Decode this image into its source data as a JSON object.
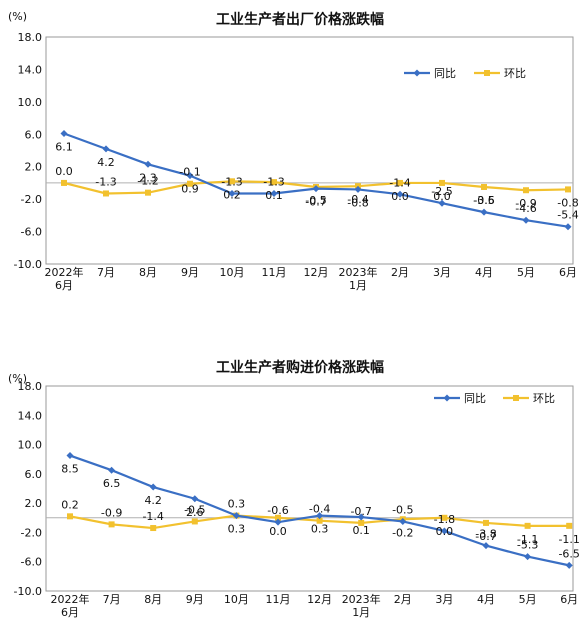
{
  "chart_data": [
    {
      "type": "line",
      "title": "工业生产者出厂价格涨跌幅",
      "unit_label": "(%)",
      "x": [
        "2022年|6月",
        "7月",
        "8月",
        "9月",
        "10月",
        "11月",
        "12月",
        "2023年|1月",
        "2月",
        "3月",
        "4月",
        "5月",
        "6月"
      ],
      "yticks": [
        "18.0",
        "14.0",
        "10.0",
        "6.0",
        "2.0",
        "-2.0",
        "-6.0",
        "-10.0"
      ],
      "ylim": [
        -10,
        18
      ],
      "grid": false,
      "legend_position": "top-right",
      "series": [
        {
          "name": "同比",
          "color": "#3a6fc4",
          "values": [
            6.1,
            4.2,
            2.3,
            0.9,
            -1.3,
            -1.3,
            -0.7,
            -0.8,
            -1.4,
            -2.5,
            -3.6,
            -4.6,
            -5.4
          ],
          "labels": [
            "6.1",
            "4.2",
            "2.3",
            "0.9",
            "-1.3",
            "-1.3",
            "-0.7",
            "-0.8",
            "-1.4",
            "-2.5",
            "-3.6",
            "-4.6",
            "-5.4"
          ]
        },
        {
          "name": "环比",
          "color": "#f2c12e",
          "values": [
            0.0,
            -1.3,
            -1.2,
            -0.1,
            0.2,
            0.1,
            -0.5,
            -0.4,
            0.0,
            0.0,
            -0.5,
            -0.9,
            -0.8
          ],
          "labels": [
            "0.0",
            "-1.3",
            "-1.2",
            "-0.1",
            "0.2",
            "0.1",
            "-0.5",
            "-0.4",
            "0.0",
            "0.0",
            "-0.5",
            "-0.9",
            "-0.8"
          ]
        }
      ]
    },
    {
      "type": "line",
      "title": "工业生产者购进价格涨跌幅",
      "unit_label": "(%)",
      "x": [
        "2022年|6月",
        "7月",
        "8月",
        "9月",
        "10月",
        "11月",
        "12月",
        "2023年|1月",
        "2月",
        "3月",
        "4月",
        "5月",
        "6月"
      ],
      "yticks": [
        "18.0",
        "14.0",
        "10.0",
        "6.0",
        "2.0",
        "-2.0",
        "-6.0",
        "-10.0"
      ],
      "ylim": [
        -10,
        18
      ],
      "grid": false,
      "legend_position": "top-right",
      "series": [
        {
          "name": "同比",
          "color": "#3a6fc4",
          "values": [
            8.5,
            6.5,
            4.2,
            2.6,
            0.3,
            -0.6,
            0.3,
            0.1,
            -0.5,
            -1.8,
            -3.8,
            -5.3,
            -6.5
          ],
          "labels": [
            "8.5",
            "6.5",
            "4.2",
            "2.6",
            "0.3",
            "-0.6",
            "0.3",
            "0.1",
            "-0.5",
            "-1.8",
            "-3.8",
            "-5.3",
            "-6.5"
          ]
        },
        {
          "name": "环比",
          "color": "#f2c12e",
          "values": [
            0.2,
            -0.9,
            -1.4,
            -0.5,
            0.3,
            0.0,
            -0.4,
            -0.7,
            -0.2,
            0.0,
            -0.7,
            -1.1,
            -1.1
          ],
          "labels": [
            "0.2",
            "-0.9",
            "-1.4",
            "-0.5",
            "0.3",
            "0.0",
            "-0.4",
            "-0.7",
            "-0.2",
            "0.0",
            "-0.7",
            "-1.1",
            "-1.1"
          ]
        }
      ]
    }
  ]
}
